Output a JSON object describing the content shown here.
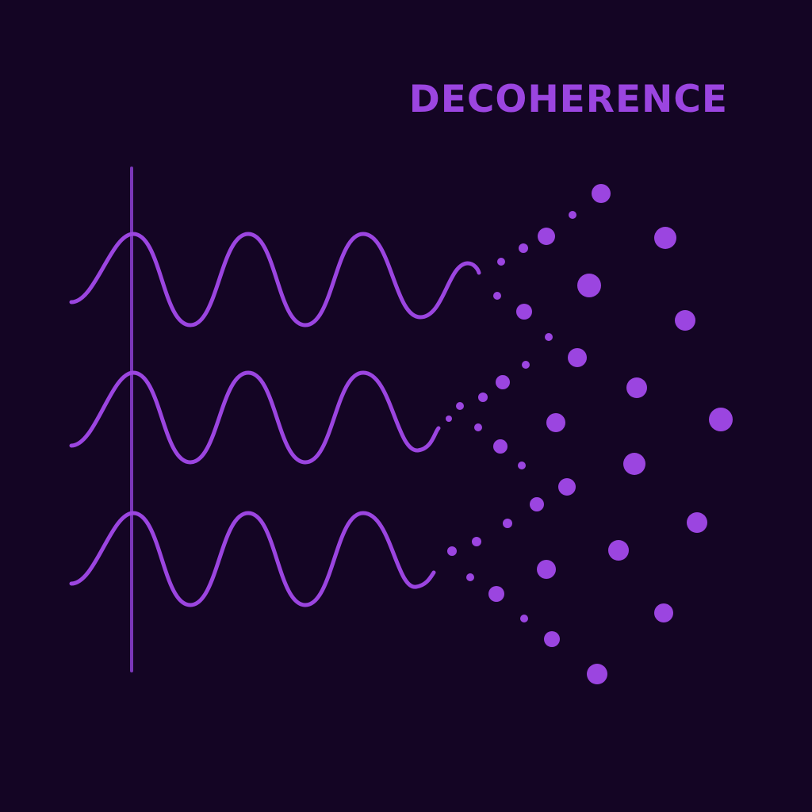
{
  "title": "DECOHERENCE",
  "colors": {
    "background": "#140524",
    "wave": "#9b45e0",
    "axis": "#7a36b8",
    "particle": "#9b45e0",
    "title": "#9b45e0"
  },
  "icons": {
    "waves": "sine-wave-icon",
    "particles": "particle-dot-icon"
  }
}
